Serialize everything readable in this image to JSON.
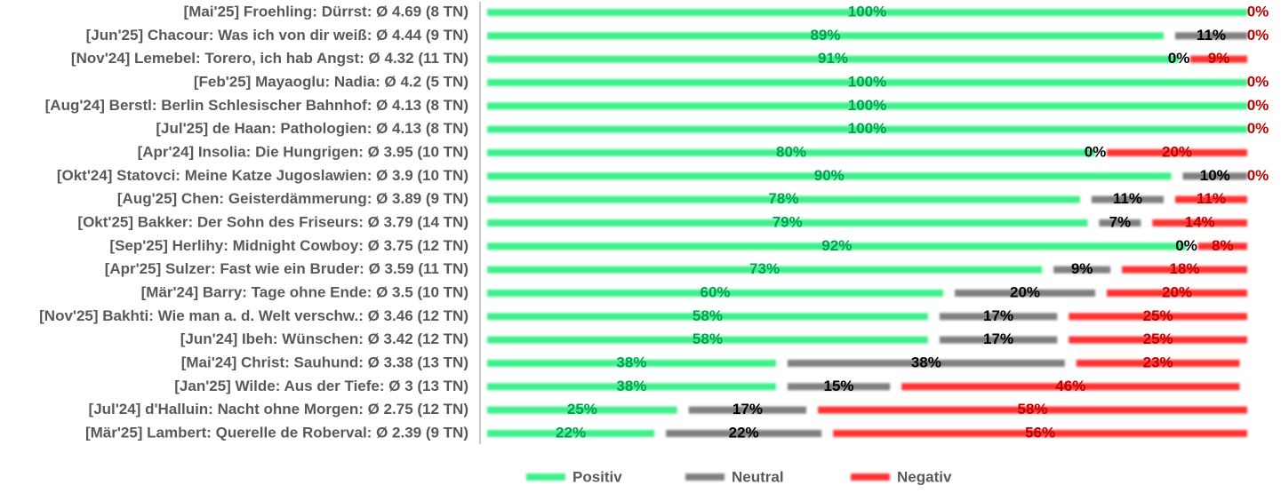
{
  "chart_data": {
    "type": "stacked-bar-horizontal",
    "categories": [
      "[Mai'25] Froehling: Dürrst: Ø 4.69 (8 TN)",
      "[Jun'25] Chacour: Was ich von dir weiß: Ø 4.44 (9 TN)",
      "[Nov'24] Lemebel: Torero, ich hab Angst: Ø 4.32 (11 TN)",
      "[Feb'25] Mayaoglu: Nadia: Ø 4.2 (5 TN)",
      "[Aug'24] Berstl: Berlin Schlesischer Bahnhof: Ø 4.13 (8 TN)",
      "[Jul'25] de Haan: Pathologien: Ø 4.13 (8 TN)",
      "[Apr'24] Insolia: Die Hungrigen: Ø 3.95 (10 TN)",
      "[Okt'24] Statovci: Meine Katze Jugoslawien: Ø 3.9 (10 TN)",
      "[Aug'25] Chen: Geisterdämmerung: Ø 3.89 (9 TN)",
      "[Okt'25] Bakker: Der Sohn des Friseurs: Ø 3.79 (14 TN)",
      "[Sep'25] Herlihy: Midnight Cowboy: Ø 3.75 (12 TN)",
      "[Apr'25] Sulzer: Fast wie ein Bruder: Ø 3.59 (11 TN)",
      "[Mär'24] Barry: Tage ohne Ende: Ø 3.5 (10 TN)",
      "[Nov'25] Bakhti: Wie man a. d. Welt verschw.: Ø 3.46 (12 TN)",
      "[Jun'24] Ibeh: Wünschen: Ø 3.42 (12 TN)",
      "[Mai'24] Christ: Sauhund: Ø 3.38 (13 TN)",
      "[Jan'25] Wilde: Aus der Tiefe: Ø 3 (13 TN)",
      "[Jul'24] d'Halluin: Nacht ohne Morgen: Ø 2.75 (12 TN)",
      "[Mär'25] Lambert: Querelle de Roberval: Ø 2.39 (9 TN)"
    ],
    "series": [
      {
        "name": "Positiv",
        "color": "#3ef08a",
        "label_color": "#00a050",
        "values": [
          100,
          89,
          91,
          100,
          100,
          100,
          80,
          90,
          78,
          79,
          92,
          73,
          60,
          58,
          58,
          38,
          38,
          25,
          22
        ],
        "value_labels": [
          "100%",
          "89%",
          "91%",
          "100%",
          "100%",
          "100%",
          "80%",
          "90%",
          "78%",
          "79%",
          "92%",
          "73%",
          "60%",
          "58%",
          "58%",
          "38%",
          "38%",
          "25%",
          "22%"
        ]
      },
      {
        "name": "Neutral",
        "color": "#808080",
        "label_color": "#000000",
        "values": [
          0,
          11,
          0,
          0,
          0,
          0,
          0,
          10,
          11,
          7,
          0,
          9,
          20,
          17,
          17,
          38,
          15,
          17,
          22
        ],
        "value_labels": [
          null,
          "11%",
          "0%",
          null,
          null,
          null,
          "0%",
          "10%",
          "11%",
          "7%",
          "0%",
          "9%",
          "20%",
          "17%",
          "17%",
          "38%",
          "15%",
          "17%",
          "22%"
        ]
      },
      {
        "name": "Negativ",
        "color": "#ff3030",
        "label_color": "#c00000",
        "values": [
          0,
          0,
          9,
          0,
          0,
          0,
          20,
          0,
          11,
          14,
          8,
          18,
          20,
          25,
          25,
          23,
          46,
          58,
          56
        ],
        "value_labels": [
          "0%",
          "0%",
          "9%",
          "0%",
          "0%",
          "0%",
          "20%",
          "0%",
          "11%",
          "14%",
          "8%",
          "18%",
          "20%",
          "25%",
          "25%",
          "23%",
          "46%",
          "58%",
          "56%"
        ]
      }
    ]
  }
}
